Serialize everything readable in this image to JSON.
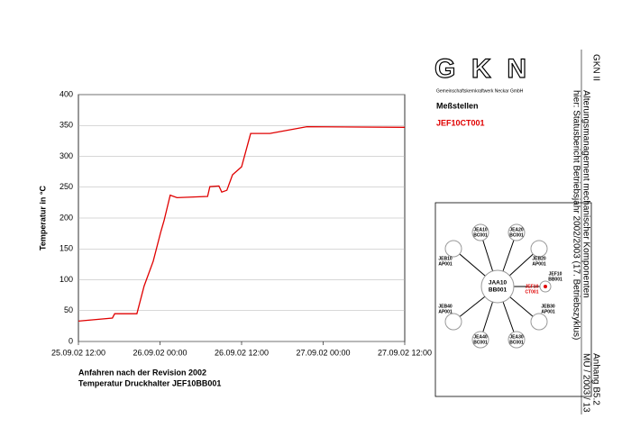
{
  "chart_data": {
    "type": "line",
    "ylabel": "Temperatur in °C",
    "x": [
      "2002-09-25 12:00",
      "2002-09-25 17:00",
      "2002-09-25 17:20",
      "2002-09-25 20:36",
      "2002-09-25 21:40",
      "2002-09-25 23:00",
      "2002-09-26 00:06",
      "2002-09-26 00:36",
      "2002-09-26 01:30",
      "2002-09-26 02:30",
      "2002-09-26 07:00",
      "2002-09-26 07:20",
      "2002-09-26 08:40",
      "2002-09-26 09:05",
      "2002-09-26 09:50",
      "2002-09-26 10:40",
      "2002-09-26 12:00",
      "2002-09-26 13:20",
      "2002-09-26 16:10",
      "2002-09-26 21:36",
      "2002-09-27 12:00"
    ],
    "series": [
      {
        "color": "#e00000",
        "values": [
          33,
          38,
          45,
          45,
          90,
          130,
          177,
          196,
          237,
          233,
          235,
          251,
          252,
          242,
          245,
          270,
          283,
          337,
          337,
          348,
          347
        ]
      }
    ],
    "xlim": [
      "2002-09-25 12:00",
      "2002-09-27 12:00"
    ],
    "xticks": [
      {
        "value": "2002-09-25 12:00",
        "label": "25.09.02 12:00"
      },
      {
        "value": "2002-09-26 00:00",
        "label": "26.09.02 00:00"
      },
      {
        "value": "2002-09-26 12:00",
        "label": "26.09.02 12:00"
      },
      {
        "value": "2002-09-27 00:00",
        "label": "27.09.02 00:00"
      },
      {
        "value": "2002-09-27 12:00",
        "label": "27.09.02 12:00"
      }
    ],
    "ylim": [
      0,
      400
    ],
    "yticks": [
      0,
      50,
      100,
      150,
      200,
      250,
      300,
      350,
      400
    ],
    "grid": true
  },
  "captions": [
    "Anfahren nach der Revision 2002",
    "Temperatur Druckhalter JEF10BB001"
  ],
  "header": {
    "logo": "GKN",
    "company": "Gemeinschaftskernkraftwerk Neckar GmbH",
    "section": "Meßstellen",
    "sensor": "JEF10CT001"
  },
  "diagram": {
    "center": [
      "JAA10",
      "BB001"
    ],
    "nodes": [
      {
        "lines": [
          "JEA10",
          "BC001"
        ]
      },
      {
        "lines": [
          "JEA20",
          "BC001"
        ]
      },
      {
        "lines": [
          "JEB20",
          "AP001"
        ]
      },
      {
        "lines": [
          "JEF10",
          "BB001"
        ]
      },
      {
        "lines": [
          "JEB30",
          "AP001"
        ]
      },
      {
        "lines": [
          "JEA30",
          "BC001"
        ]
      },
      {
        "lines": [
          "JEA40",
          "BC001"
        ]
      },
      {
        "lines": [
          "JEB40",
          "AP001"
        ]
      },
      {
        "lines": [
          "JEB10",
          "AP001"
        ]
      }
    ],
    "highlight": [
      "JEF10",
      "CT001"
    ]
  },
  "side": {
    "plant": "GKN II",
    "line1": "Alterungsmanagement mechanischer Komponenten",
    "line2": "hier: Statusbericht Betriebsjahr 2002/2003 (17. Betriebszyklus)",
    "appendix": "Anhang B5.2",
    "ref": "MÜ / 2003 / 13"
  }
}
